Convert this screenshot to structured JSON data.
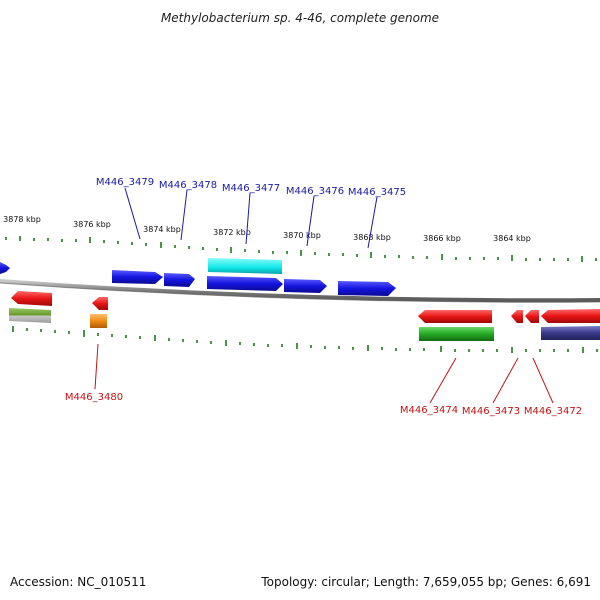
{
  "title": "Methylobacterium sp. 4-46, complete genome",
  "footer": {
    "accession": "Accession: NC_010511",
    "summary": "Topology: circular; Length: 7,659,055 bp; Genes: 6,691"
  },
  "scale_labels": [
    "3878 kbp",
    "3876 kbp",
    "3874 kbp",
    "3872 kbp",
    "3870 kbp",
    "3868 kbp",
    "3866 kbp",
    "3864 kbp"
  ],
  "genes_top": [
    "M446_3479",
    "M446_3478",
    "M446_3477",
    "M446_3476",
    "M446_3475"
  ],
  "genes_bottom": [
    "M446_3480",
    "M446_3474",
    "M446_3473",
    "M446_3472"
  ],
  "colors": {
    "forward_gene": "#1414e0",
    "reverse_gene": "#e81414",
    "label_top": "#1a1aa8",
    "label_bottom": "#c41414",
    "backbone": "#8a8a8a",
    "tick": "#1a7a1a",
    "cyan_feature": "#10e8e8",
    "green_feature": "#22aa22",
    "navy_feature": "#3a3a8a",
    "orange_feature": "#f08a10",
    "olive_feature": "#6a9a2a"
  }
}
